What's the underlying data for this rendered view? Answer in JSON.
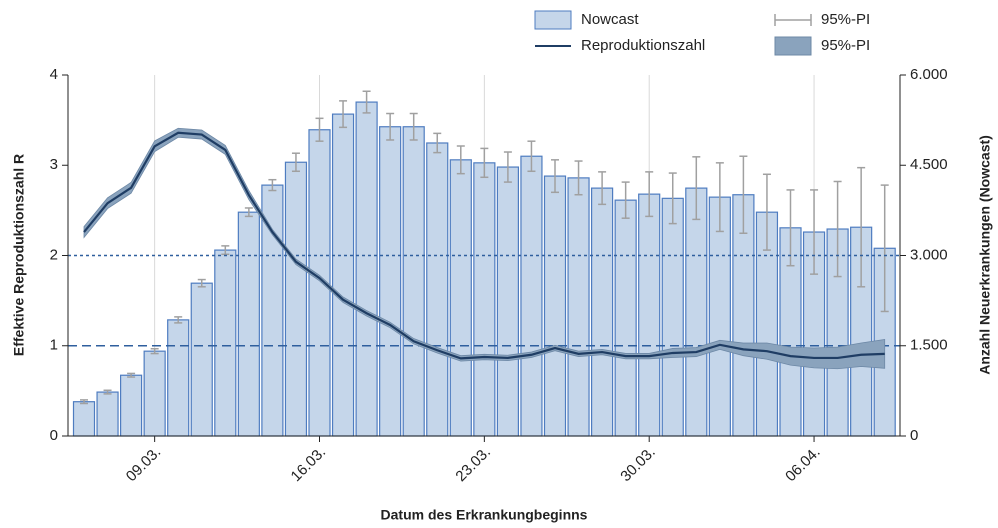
{
  "chart_data": {
    "type": "bar_line",
    "xlabel": "Datum des Erkrankungbeginns",
    "ylabel": "Effektive Reproduktionszahl R",
    "y2label": "Anzahl Neuerkrankungen (Nowcast)",
    "categories": [
      null,
      null,
      null,
      "09.03.",
      null,
      null,
      null,
      null,
      null,
      null,
      "16.03.",
      null,
      null,
      null,
      null,
      null,
      null,
      "23.03.",
      null,
      null,
      null,
      null,
      null,
      null,
      "30.03.",
      null,
      null,
      null,
      null,
      null,
      null,
      "06.04.",
      null,
      null,
      null
    ],
    "ylim": [
      0,
      4
    ],
    "yticks": [
      0,
      1,
      2,
      3,
      4
    ],
    "y2lim": [
      0,
      6000
    ],
    "y2ticks": [
      0,
      {
        "value": 1500,
        "label": "1.500"
      },
      {
        "value": 3000,
        "label": "3.000"
      },
      {
        "value": 4500,
        "label": "4.500"
      },
      {
        "value": 6000,
        "label": "6.000"
      }
    ],
    "hlines": [
      {
        "value": 2,
        "style": "dotted"
      },
      {
        "value": 1,
        "style": "dashed"
      }
    ],
    "vgrid": true,
    "series": [
      {
        "name": "Nowcast",
        "type": "bar",
        "axis": "y2",
        "color": "#c5d6ea",
        "edge": "#4e7cc0",
        "values": [
          570,
          730,
          1010,
          1410,
          1930,
          2540,
          3090,
          3720,
          4170,
          4550,
          5090,
          5350,
          5550,
          5140,
          5140,
          4870,
          4590,
          4540,
          4470,
          4650,
          4320,
          4290,
          4120,
          3920,
          4020,
          3950,
          4120,
          3970,
          4010,
          3720,
          3460,
          3390,
          3440,
          3470,
          3120
        ]
      },
      {
        "name": "Reproduktionszahl",
        "type": "line",
        "axis": "y",
        "color": "#1f3d64",
        "values": [
          2.26,
          2.58,
          2.75,
          3.21,
          3.36,
          3.34,
          3.17,
          2.67,
          2.26,
          1.93,
          1.75,
          1.51,
          1.36,
          1.23,
          1.05,
          0.95,
          0.86,
          0.875,
          0.865,
          0.9,
          0.975,
          0.91,
          0.93,
          0.885,
          0.885,
          0.92,
          0.93,
          1.01,
          0.96,
          0.94,
          0.885,
          0.865,
          0.865,
          0.9,
          0.91
        ]
      },
      {
        "name": "95%-PI",
        "type": "errorbar",
        "axis": "y2",
        "color": "#a0a0a0",
        "errors": [
          30,
          30,
          30,
          40,
          50,
          60,
          70,
          70,
          90,
          150,
          190,
          220,
          180,
          220,
          220,
          160,
          230,
          240,
          250,
          250,
          270,
          280,
          270,
          300,
          370,
          420,
          520,
          570,
          640,
          630,
          630,
          700,
          790,
          990,
          1050
        ]
      },
      {
        "name": "95%-PI",
        "type": "band",
        "axis": "y",
        "color": "#8aa3bd",
        "lower": [
          2.2,
          2.52,
          2.69,
          3.15,
          3.31,
          3.29,
          3.12,
          2.62,
          2.23,
          1.9,
          1.72,
          1.48,
          1.33,
          1.2,
          1.02,
          0.92,
          0.83,
          0.845,
          0.835,
          0.87,
          0.945,
          0.88,
          0.9,
          0.855,
          0.855,
          0.87,
          0.88,
          0.96,
          0.89,
          0.85,
          0.785,
          0.755,
          0.745,
          0.77,
          0.75
        ],
        "upper": [
          2.32,
          2.64,
          2.81,
          3.27,
          3.41,
          3.39,
          3.22,
          2.72,
          2.29,
          1.96,
          1.78,
          1.54,
          1.39,
          1.26,
          1.08,
          0.98,
          0.89,
          0.905,
          0.895,
          0.93,
          1.005,
          0.94,
          0.96,
          0.915,
          0.915,
          0.97,
          0.98,
          1.06,
          1.03,
          1.03,
          0.985,
          0.975,
          0.985,
          1.03,
          1.07
        ]
      }
    ]
  }
}
